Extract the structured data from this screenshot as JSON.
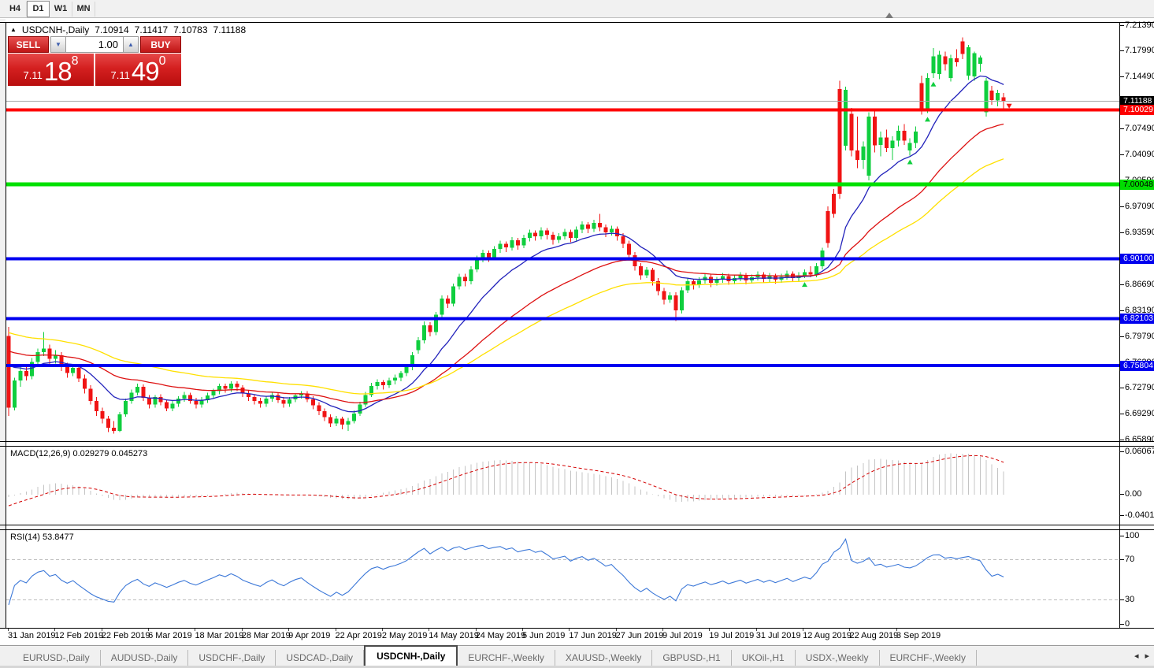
{
  "toolbar": {
    "timeframes": [
      {
        "label": "H4",
        "active": false
      },
      {
        "label": "D1",
        "active": true
      },
      {
        "label": "W1",
        "active": false
      },
      {
        "label": "MN",
        "active": false
      }
    ]
  },
  "chart_header": {
    "symbol": "USDCNH-,Daily",
    "open": "7.10914",
    "high": "7.11417",
    "low": "7.10783",
    "close": "7.11188"
  },
  "trade_panel": {
    "sell_label": "SELL",
    "buy_label": "BUY",
    "volume": "1.00",
    "sell_price": {
      "small": "7.11",
      "big": "18",
      "sup": "8"
    },
    "buy_price": {
      "small": "7.11",
      "big": "49",
      "sup": "0"
    },
    "bg_top": "#e64848",
    "bg_bottom": "#b80d0d"
  },
  "price_axis": {
    "ticks": [
      "7.21390",
      "7.17990",
      "7.14490",
      "7.10990",
      "7.07490",
      "7.04090",
      "7.00590",
      "6.97090",
      "6.93590",
      "6.90090",
      "6.86690",
      "6.83190",
      "6.79790",
      "6.76290",
      "6.72790",
      "6.69290",
      "6.65890"
    ]
  },
  "hlines": [
    {
      "price": 7.11188,
      "color": "#a8a8a8",
      "thickness": 1,
      "badge_bg": "#000000",
      "badge_fg": "#ffffff",
      "label": "7.11188"
    },
    {
      "price": 7.10029,
      "color": "#ff0000",
      "thickness": 4,
      "badge_bg": "#fd0000",
      "badge_fg": "#ffffff",
      "label": "7.10029"
    },
    {
      "price": 7.00048,
      "color": "#00e000",
      "thickness": 5,
      "badge_bg": "#00dc00",
      "badge_fg": "#000000",
      "label": "7.00048"
    },
    {
      "price": 6.901,
      "color": "#0000f0",
      "thickness": 4,
      "badge_bg": "#0000ee",
      "badge_fg": "#ffffff",
      "label": "6.90100"
    },
    {
      "price": 6.82103,
      "color": "#0000f0",
      "thickness": 4,
      "badge_bg": "#0000ee",
      "badge_fg": "#ffffff",
      "label": "6.82103"
    },
    {
      "price": 6.75804,
      "color": "#0000f0",
      "thickness": 4,
      "badge_bg": "#0000ee",
      "badge_fg": "#ffffff",
      "label": "6.75804"
    }
  ],
  "indicators": {
    "macd": {
      "label_text": "MACD(12,26,9) 0.029279 0.045273",
      "axis_labels": [
        "0.060674",
        "0.00",
        "-0.040152"
      ],
      "hist_color": "#c4c4c4",
      "signal_color": "#d40000"
    },
    "rsi": {
      "label_text": "RSI(14) 53.8477",
      "axis_labels": [
        "100",
        "70",
        "30",
        "0"
      ],
      "levels": [
        70,
        30
      ],
      "line_color": "#3c78d8",
      "level_color": "#bcbcbc"
    }
  },
  "dates": [
    "31 Jan 2019",
    "12 Feb 2019",
    "22 Feb 2019",
    "6 Mar 2019",
    "18 Mar 2019",
    "28 Mar 2019",
    "9 Apr 2019",
    "22 Apr 2019",
    "2 May 2019",
    "14 May 2019",
    "24 May 2019",
    "5 Jun 2019",
    "17 Jun 2019",
    "27 Jun 2019",
    "9 Jul 2019",
    "19 Jul 2019",
    "31 Jul 2019",
    "12 Aug 2019",
    "22 Aug 2019",
    "3 Sep 2019"
  ],
  "tabs": [
    {
      "label": "EURUSD-,Daily",
      "active": false
    },
    {
      "label": "AUDUSD-,Daily",
      "active": false
    },
    {
      "label": "USDCHF-,Daily",
      "active": false
    },
    {
      "label": "USDCAD-,Daily",
      "active": false
    },
    {
      "label": "USDCNH-,Daily",
      "active": true
    },
    {
      "label": "EURCHF-,Weekly",
      "active": false
    },
    {
      "label": "XAUUSD-,Weekly",
      "active": false
    },
    {
      "label": "GBPUSD-,H1",
      "active": false
    },
    {
      "label": "UKOil-,H1",
      "active": false
    },
    {
      "label": "USDX-,Weekly",
      "active": false
    },
    {
      "label": "EURCHF-,Weekly",
      "active": false
    }
  ],
  "tab_scroll": {
    "left": "◂",
    "right": "▸"
  },
  "chart_data": {
    "type": "candlestick",
    "symbol": "USDCNH-,Daily",
    "colors": {
      "up": "#0fce3e",
      "down": "#f01414",
      "ma_fast": "#2222bb",
      "ma_mid": "#dd1111",
      "ma_slow": "#ffe000"
    },
    "ma_lines": [
      {
        "period": 13,
        "color": "#2222bb",
        "seed": 6.768
      },
      {
        "period": 34,
        "color": "#dd1111",
        "seed": 6.782
      },
      {
        "period": 55,
        "color": "#ffe000",
        "seed": 6.806
      }
    ],
    "markers": [
      {
        "index": 136,
        "dir": "up"
      },
      {
        "index": 154,
        "dir": "up"
      },
      {
        "index": 157,
        "dir": "up"
      },
      {
        "index": 158,
        "dir": "up"
      },
      {
        "index": 170,
        "dir": "down"
      }
    ],
    "candles": [
      [
        6.798,
        6.81,
        6.691,
        6.702
      ],
      [
        6.702,
        6.742,
        6.698,
        6.738
      ],
      [
        6.738,
        6.756,
        6.73,
        6.751
      ],
      [
        6.751,
        6.757,
        6.738,
        6.744
      ],
      [
        6.744,
        6.768,
        6.74,
        6.763
      ],
      [
        6.763,
        6.781,
        6.758,
        6.776
      ],
      [
        6.776,
        6.803,
        6.771,
        6.781
      ],
      [
        6.781,
        6.786,
        6.76,
        6.767
      ],
      [
        6.767,
        6.779,
        6.761,
        6.772
      ],
      [
        6.772,
        6.776,
        6.751,
        6.757
      ],
      [
        6.757,
        6.762,
        6.742,
        6.748
      ],
      [
        6.748,
        6.76,
        6.744,
        6.755
      ],
      [
        6.755,
        6.758,
        6.736,
        6.741
      ],
      [
        6.741,
        6.746,
        6.721,
        6.727
      ],
      [
        6.727,
        6.732,
        6.706,
        6.711
      ],
      [
        6.711,
        6.716,
        6.691,
        6.697
      ],
      [
        6.697,
        6.702,
        6.681,
        6.687
      ],
      [
        6.687,
        6.691,
        6.669,
        6.675
      ],
      [
        6.675,
        6.684,
        6.667,
        6.671
      ],
      [
        6.671,
        6.696,
        6.669,
        6.693
      ],
      [
        6.693,
        6.714,
        6.69,
        6.711
      ],
      [
        6.711,
        6.726,
        6.707,
        6.722
      ],
      [
        6.722,
        6.734,
        6.718,
        6.73
      ],
      [
        6.73,
        6.733,
        6.711,
        6.715
      ],
      [
        6.715,
        6.719,
        6.701,
        6.706
      ],
      [
        6.706,
        6.719,
        6.702,
        6.716
      ],
      [
        6.716,
        6.72,
        6.705,
        6.709
      ],
      [
        6.709,
        6.713,
        6.697,
        6.701
      ],
      [
        6.701,
        6.711,
        6.697,
        6.707
      ],
      [
        6.707,
        6.717,
        6.703,
        6.714
      ],
      [
        6.714,
        6.723,
        6.71,
        6.719
      ],
      [
        6.719,
        6.722,
        6.707,
        6.711
      ],
      [
        6.711,
        6.715,
        6.701,
        6.706
      ],
      [
        6.706,
        6.716,
        6.702,
        6.712
      ],
      [
        6.712,
        6.722,
        6.708,
        6.718
      ],
      [
        6.718,
        6.727,
        6.714,
        6.724
      ],
      [
        6.724,
        6.734,
        6.72,
        6.731
      ],
      [
        6.731,
        6.734,
        6.722,
        6.727
      ],
      [
        6.727,
        6.737,
        6.723,
        6.734
      ],
      [
        6.734,
        6.737,
        6.724,
        6.729
      ],
      [
        6.729,
        6.732,
        6.716,
        6.721
      ],
      [
        6.721,
        6.725,
        6.711,
        6.716
      ],
      [
        6.716,
        6.719,
        6.706,
        6.711
      ],
      [
        6.711,
        6.715,
        6.702,
        6.707
      ],
      [
        6.707,
        6.717,
        6.703,
        6.714
      ],
      [
        6.714,
        6.722,
        6.71,
        6.719
      ],
      [
        6.719,
        6.722,
        6.708,
        6.712
      ],
      [
        6.712,
        6.716,
        6.702,
        6.707
      ],
      [
        6.707,
        6.716,
        6.703,
        6.713
      ],
      [
        6.713,
        6.721,
        6.709,
        6.718
      ],
      [
        6.718,
        6.724,
        6.714,
        6.721
      ],
      [
        6.721,
        6.724,
        6.709,
        6.713
      ],
      [
        6.713,
        6.717,
        6.7,
        6.705
      ],
      [
        6.705,
        6.709,
        6.692,
        6.697
      ],
      [
        6.697,
        6.701,
        6.684,
        6.689
      ],
      [
        6.689,
        6.693,
        6.676,
        6.681
      ],
      [
        6.681,
        6.691,
        6.677,
        6.687
      ],
      [
        6.687,
        6.69,
        6.673,
        6.679
      ],
      [
        6.679,
        6.688,
        6.671,
        6.684
      ],
      [
        6.684,
        6.698,
        6.681,
        6.694
      ],
      [
        6.694,
        6.71,
        6.691,
        6.706
      ],
      [
        6.706,
        6.723,
        6.703,
        6.719
      ],
      [
        6.719,
        6.735,
        6.716,
        6.731
      ],
      [
        6.731,
        6.74,
        6.726,
        6.736
      ],
      [
        6.736,
        6.739,
        6.726,
        6.732
      ],
      [
        6.732,
        6.742,
        6.728,
        6.738
      ],
      [
        6.738,
        6.746,
        6.733,
        6.742
      ],
      [
        6.742,
        6.751,
        6.737,
        6.748
      ],
      [
        6.748,
        6.76,
        6.744,
        6.756
      ],
      [
        6.756,
        6.776,
        6.752,
        6.772
      ],
      [
        6.779,
        6.796,
        6.774,
        6.792
      ],
      [
        6.792,
        6.817,
        6.788,
        6.812
      ],
      [
        6.812,
        6.816,
        6.797,
        6.803
      ],
      [
        6.803,
        6.83,
        6.799,
        6.826
      ],
      [
        6.826,
        6.852,
        6.822,
        6.848
      ],
      [
        6.848,
        6.852,
        6.835,
        6.841
      ],
      [
        6.841,
        6.868,
        6.837,
        6.864
      ],
      [
        6.864,
        6.881,
        6.86,
        6.877
      ],
      [
        6.877,
        6.881,
        6.864,
        6.871
      ],
      [
        6.871,
        6.891,
        6.867,
        6.887
      ],
      [
        6.887,
        6.905,
        6.883,
        6.901
      ],
      [
        6.901,
        6.913,
        6.896,
        6.909
      ],
      [
        6.909,
        6.912,
        6.897,
        6.903
      ],
      [
        6.903,
        6.918,
        6.899,
        6.914
      ],
      [
        6.914,
        6.925,
        6.909,
        6.921
      ],
      [
        6.921,
        6.924,
        6.91,
        6.916
      ],
      [
        6.916,
        6.93,
        6.912,
        6.926
      ],
      [
        6.926,
        6.929,
        6.913,
        6.919
      ],
      [
        6.919,
        6.933,
        6.915,
        6.929
      ],
      [
        6.929,
        6.94,
        6.924,
        6.936
      ],
      [
        6.936,
        6.939,
        6.925,
        6.931
      ],
      [
        6.931,
        6.943,
        6.927,
        6.939
      ],
      [
        6.939,
        6.942,
        6.927,
        6.933
      ],
      [
        6.933,
        6.937,
        6.92,
        6.926
      ],
      [
        6.926,
        6.935,
        6.922,
        6.931
      ],
      [
        6.931,
        6.941,
        6.927,
        6.937
      ],
      [
        6.937,
        6.94,
        6.923,
        6.929
      ],
      [
        6.929,
        6.944,
        6.925,
        6.94
      ],
      [
        6.94,
        6.951,
        6.935,
        6.947
      ],
      [
        6.947,
        6.95,
        6.935,
        6.941
      ],
      [
        6.941,
        6.953,
        6.937,
        6.949
      ],
      [
        6.949,
        6.961,
        6.938,
        6.943
      ],
      [
        6.943,
        6.947,
        6.93,
        6.936
      ],
      [
        6.936,
        6.945,
        6.932,
        6.941
      ],
      [
        6.941,
        6.944,
        6.925,
        6.931
      ],
      [
        6.931,
        6.935,
        6.915,
        6.921
      ],
      [
        6.921,
        6.925,
        6.9,
        6.906
      ],
      [
        6.906,
        6.91,
        6.885,
        6.891
      ],
      [
        6.891,
        6.895,
        6.873,
        6.879
      ],
      [
        6.879,
        6.89,
        6.875,
        6.886
      ],
      [
        6.886,
        6.889,
        6.865,
        6.871
      ],
      [
        6.871,
        6.875,
        6.852,
        6.858
      ],
      [
        6.858,
        6.862,
        6.84,
        6.846
      ],
      [
        6.846,
        6.856,
        6.842,
        6.852
      ],
      [
        6.852,
        6.856,
        6.818,
        6.832
      ],
      [
        6.832,
        6.863,
        6.828,
        6.859
      ],
      [
        6.859,
        6.875,
        6.855,
        6.871
      ],
      [
        6.871,
        6.874,
        6.86,
        6.866
      ],
      [
        6.866,
        6.876,
        6.862,
        6.872
      ],
      [
        6.872,
        6.881,
        6.868,
        6.877
      ],
      [
        6.877,
        6.88,
        6.863,
        6.869
      ],
      [
        6.869,
        6.877,
        6.865,
        6.873
      ],
      [
        6.873,
        6.882,
        6.869,
        6.878
      ],
      [
        6.878,
        6.881,
        6.866,
        6.871
      ],
      [
        6.871,
        6.879,
        6.867,
        6.875
      ],
      [
        6.875,
        6.883,
        6.871,
        6.879
      ],
      [
        6.879,
        6.882,
        6.867,
        6.872
      ],
      [
        6.872,
        6.88,
        6.868,
        6.876
      ],
      [
        6.876,
        6.884,
        6.872,
        6.88
      ],
      [
        6.88,
        6.883,
        6.869,
        6.874
      ],
      [
        6.874,
        6.882,
        6.87,
        6.878
      ],
      [
        6.878,
        6.881,
        6.868,
        6.873
      ],
      [
        6.873,
        6.881,
        6.869,
        6.877
      ],
      [
        6.877,
        6.885,
        6.873,
        6.881
      ],
      [
        6.881,
        6.884,
        6.87,
        6.875
      ],
      [
        6.875,
        6.883,
        6.871,
        6.879
      ],
      [
        6.879,
        6.887,
        6.875,
        6.883
      ],
      [
        6.883,
        6.891,
        6.876,
        6.88
      ],
      [
        6.88,
        6.895,
        6.876,
        6.891
      ],
      [
        6.891,
        6.916,
        6.887,
        6.912
      ],
      [
        6.965,
        6.971,
        6.916,
        6.922
      ],
      [
        6.988,
        6.994,
        6.956,
        6.961
      ],
      [
        7.128,
        7.139,
        6.981,
        6.988
      ],
      [
        7.052,
        7.131,
        7.046,
        7.127
      ],
      [
        7.095,
        7.103,
        7.038,
        7.046
      ],
      [
        7.046,
        7.091,
        7.022,
        7.033
      ],
      [
        7.033,
        7.058,
        7.021,
        7.051
      ],
      [
        7.012,
        7.097,
        7.006,
        7.091
      ],
      [
        7.091,
        7.099,
        7.043,
        7.053
      ],
      [
        7.053,
        7.071,
        7.038,
        7.063
      ],
      [
        7.063,
        7.074,
        7.044,
        7.049
      ],
      [
        7.049,
        7.065,
        7.033,
        7.059
      ],
      [
        7.059,
        7.079,
        7.051,
        7.072
      ],
      [
        7.072,
        7.081,
        7.053,
        7.059
      ],
      [
        7.046,
        7.062,
        7.039,
        7.056
      ],
      [
        7.056,
        7.078,
        7.049,
        7.071
      ],
      [
        7.136,
        7.146,
        7.094,
        7.101
      ],
      [
        7.101,
        7.149,
        7.096,
        7.143
      ],
      [
        7.149,
        7.183,
        7.143,
        7.172
      ],
      [
        7.148,
        7.179,
        7.141,
        7.174
      ],
      [
        7.172,
        7.178,
        7.153,
        7.161
      ],
      [
        7.143,
        7.174,
        7.138,
        7.169
      ],
      [
        7.169,
        7.181,
        7.158,
        7.164
      ],
      [
        7.192,
        7.197,
        7.168,
        7.175
      ],
      [
        7.146,
        7.187,
        7.14,
        7.184
      ],
      [
        7.145,
        7.178,
        7.139,
        7.176
      ],
      [
        7.162,
        7.173,
        7.151,
        7.17
      ],
      [
        7.097,
        7.143,
        7.091,
        7.139
      ],
      [
        7.126,
        7.132,
        7.107,
        7.113
      ],
      [
        7.113,
        7.127,
        7.105,
        7.123
      ],
      [
        7.117,
        7.123,
        7.1,
        7.112
      ]
    ]
  }
}
